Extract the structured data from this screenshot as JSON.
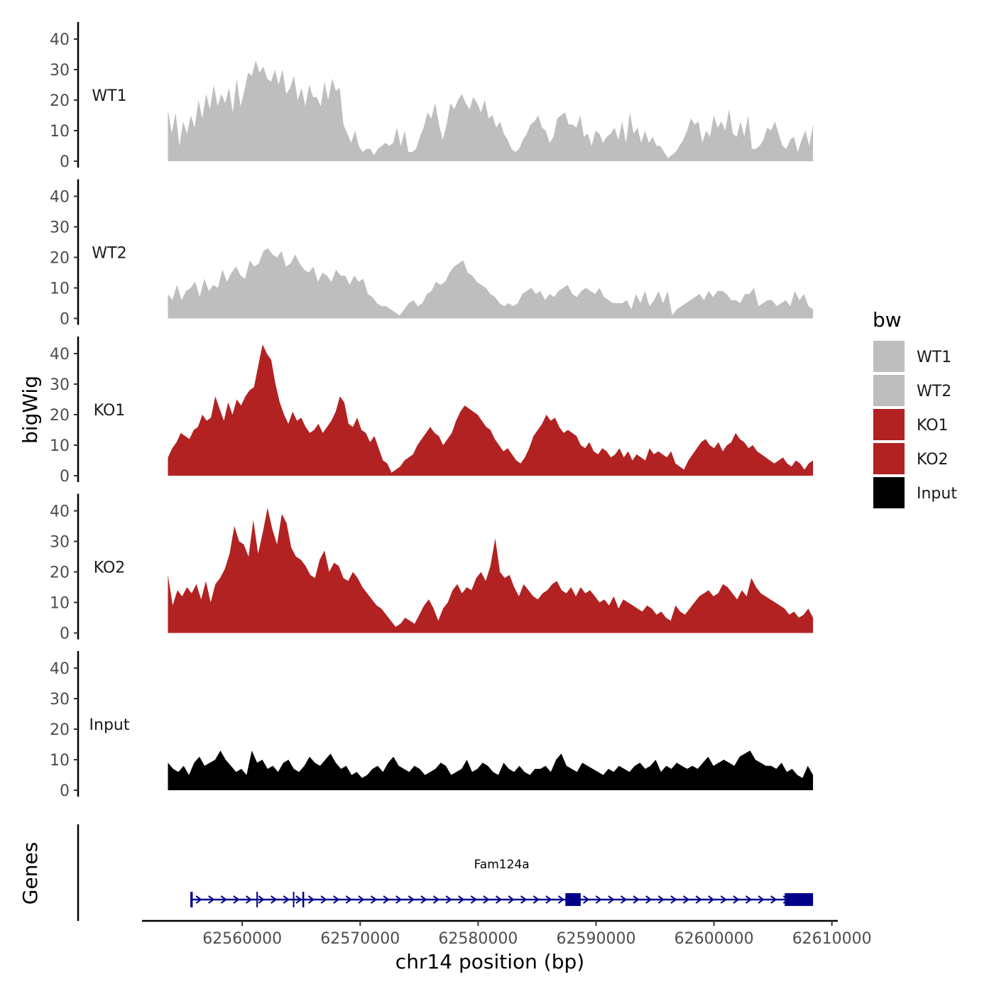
{
  "chart_data": {
    "type": "area",
    "subtype": "genome-browser-tracks",
    "xlabel": "chr14 position (bp)",
    "ylabel": "bigWig",
    "genes_label": "Genes",
    "x_range": [
      62553700,
      62608400
    ],
    "xlim": [
      62551500,
      62610500
    ],
    "ylim": [
      0,
      45
    ],
    "x_ticks": [
      62560000,
      62570000,
      62580000,
      62590000,
      62600000,
      62610000
    ],
    "x_tick_labels": [
      "62560000",
      "62570000",
      "62580000",
      "62590000",
      "62600000",
      "62610000"
    ],
    "y_ticks": [
      0,
      10,
      20,
      30,
      40
    ],
    "y_tick_labels": [
      "0",
      "10",
      "20",
      "30",
      "40"
    ],
    "legend": {
      "title": "bw",
      "position": "right",
      "items": [
        {
          "label": "WT1",
          "color": "#BEBEBE"
        },
        {
          "label": "WT2",
          "color": "#BEBEBE"
        },
        {
          "label": "KO1",
          "color": "#B22222"
        },
        {
          "label": "KO2",
          "color": "#B22222"
        },
        {
          "label": "Input",
          "color": "#000000"
        }
      ]
    },
    "series": [
      {
        "name": "WT1",
        "color": "#BEBEBE",
        "x_start": 62553700,
        "x_end": 62608400,
        "values": [
          17,
          9,
          16,
          5,
          13,
          9,
          15,
          11,
          20,
          14,
          22,
          17,
          25,
          18,
          22,
          19,
          24,
          16,
          27,
          18,
          23,
          29,
          28,
          33,
          29,
          31,
          27,
          26,
          30,
          25,
          30,
          22,
          24,
          28,
          20,
          24,
          18,
          25,
          21,
          21,
          18,
          26,
          20,
          27,
          23,
          24,
          12,
          9,
          6,
          10,
          5,
          3,
          4,
          4,
          2,
          4,
          5,
          6,
          5,
          6,
          11,
          5,
          10,
          3,
          3,
          4,
          8,
          11,
          16,
          14,
          19,
          12,
          7,
          12,
          19,
          17,
          20,
          22,
          19,
          17,
          21,
          19,
          16,
          20,
          14,
          15,
          11,
          13,
          9,
          7,
          4,
          3,
          4,
          7,
          9,
          12,
          13,
          15,
          11,
          10,
          6,
          8,
          14,
          15,
          16,
          12,
          12,
          11,
          15,
          8,
          9,
          5,
          10,
          9,
          6,
          8,
          9,
          11,
          7,
          13,
          6,
          16,
          9,
          11,
          6,
          10,
          6,
          8,
          5,
          5,
          3,
          1,
          2,
          3,
          5,
          7,
          10,
          14,
          12,
          13,
          6,
          10,
          8,
          15,
          11,
          13,
          10,
          17,
          9,
          8,
          13,
          8,
          15,
          4,
          4,
          5,
          7,
          11,
          10,
          13,
          9,
          5,
          4,
          7,
          8,
          3,
          7,
          10,
          5,
          12
        ]
      },
      {
        "name": "WT2",
        "color": "#BEBEBE",
        "x_start": 62553700,
        "x_end": 62608400,
        "values": [
          8,
          6,
          11,
          6,
          9,
          10,
          12,
          7,
          13,
          9,
          11,
          10,
          16,
          12,
          15,
          17,
          14,
          13,
          19,
          17,
          18,
          22,
          23,
          21,
          20,
          22,
          17,
          18,
          21,
          18,
          16,
          15,
          17,
          12,
          15,
          14,
          12,
          16,
          14,
          14,
          11,
          14,
          12,
          13,
          8,
          7,
          5,
          4,
          4,
          3,
          2,
          1,
          3,
          5,
          6,
          4,
          5,
          8,
          9,
          12,
          11,
          12,
          15,
          17,
          18,
          19,
          15,
          14,
          12,
          11,
          10,
          8,
          7,
          5,
          4,
          5,
          4,
          5,
          8,
          9,
          10,
          8,
          9,
          6,
          8,
          7,
          9,
          10,
          11,
          8,
          7,
          9,
          10,
          9,
          8,
          10,
          7,
          6,
          5,
          5,
          5,
          6,
          3,
          8,
          5,
          9,
          4,
          6,
          9,
          5,
          9,
          1,
          3,
          4,
          5,
          6,
          7,
          8,
          6,
          9,
          7,
          9,
          9,
          8,
          6,
          6,
          5,
          8,
          8,
          10,
          4,
          5,
          6,
          6,
          4,
          5,
          6,
          4,
          9,
          6,
          8,
          4,
          3
        ]
      },
      {
        "name": "KO1",
        "color": "#B22222",
        "x_start": 62553700,
        "x_end": 62608400,
        "values": [
          6,
          9,
          11,
          14,
          13,
          12,
          15,
          16,
          20,
          18,
          19,
          26,
          22,
          18,
          24,
          20,
          25,
          23,
          26,
          28,
          29,
          36,
          43,
          40,
          38,
          30,
          24,
          20,
          17,
          21,
          18,
          19,
          16,
          14,
          15,
          17,
          14,
          16,
          18,
          21,
          26,
          24,
          17,
          16,
          19,
          15,
          14,
          11,
          13,
          9,
          5,
          4,
          1,
          2,
          3,
          5,
          6,
          7,
          10,
          12,
          14,
          16,
          14,
          13,
          10,
          12,
          14,
          18,
          21,
          23,
          22,
          21,
          20,
          18,
          16,
          15,
          12,
          10,
          8,
          9,
          7,
          5,
          4,
          6,
          9,
          13,
          15,
          17,
          20,
          18,
          19,
          16,
          14,
          15,
          14,
          13,
          10,
          9,
          11,
          8,
          7,
          9,
          8,
          6,
          7,
          9,
          6,
          8,
          5,
          7,
          6,
          5,
          9,
          7,
          8,
          7,
          6,
          8,
          4,
          3,
          2,
          5,
          7,
          9,
          11,
          12,
          10,
          9,
          11,
          8,
          10,
          11,
          14,
          12,
          11,
          9,
          10,
          8,
          7,
          6,
          5,
          4,
          5,
          6,
          4,
          3,
          5,
          4,
          2,
          4,
          5
        ]
      },
      {
        "name": "KO2",
        "color": "#B22222",
        "x_start": 62553700,
        "x_end": 62608400,
        "values": [
          19,
          9,
          14,
          12,
          15,
          13,
          16,
          11,
          17,
          10,
          16,
          18,
          21,
          26,
          35,
          30,
          29,
          25,
          37,
          26,
          33,
          41,
          34,
          29,
          39,
          36,
          28,
          25,
          24,
          22,
          19,
          18,
          24,
          27,
          20,
          23,
          22,
          18,
          17,
          20,
          18,
          15,
          13,
          11,
          9,
          8,
          6,
          4,
          2,
          3,
          5,
          4,
          3,
          6,
          9,
          11,
          8,
          4,
          8,
          10,
          14,
          16,
          13,
          15,
          14,
          18,
          20,
          17,
          22,
          31,
          20,
          18,
          19,
          15,
          12,
          16,
          14,
          12,
          11,
          13,
          14,
          16,
          17,
          14,
          13,
          15,
          12,
          15,
          13,
          14,
          12,
          10,
          11,
          9,
          12,
          8,
          11,
          10,
          9,
          8,
          7,
          9,
          8,
          6,
          7,
          5,
          4,
          9,
          7,
          6,
          8,
          10,
          12,
          13,
          14,
          12,
          13,
          16,
          15,
          13,
          11,
          14,
          12,
          18,
          15,
          13,
          12,
          11,
          10,
          9,
          8,
          6,
          7,
          5,
          6,
          8,
          5
        ]
      },
      {
        "name": "Input",
        "color": "#000000",
        "x_start": 62553700,
        "x_end": 62608400,
        "values": [
          9,
          7,
          6,
          8,
          5,
          9,
          11,
          8,
          9,
          10,
          13,
          10,
          8,
          6,
          7,
          5,
          13,
          9,
          10,
          7,
          8,
          6,
          9,
          10,
          7,
          6,
          8,
          11,
          9,
          8,
          10,
          12,
          9,
          7,
          8,
          5,
          6,
          4,
          5,
          7,
          8,
          6,
          9,
          11,
          8,
          7,
          6,
          8,
          7,
          5,
          6,
          7,
          9,
          8,
          5,
          6,
          7,
          10,
          6,
          7,
          9,
          8,
          6,
          5,
          9,
          7,
          6,
          8,
          6,
          5,
          7,
          7,
          8,
          6,
          10,
          12,
          8,
          7,
          6,
          9,
          8,
          7,
          6,
          5,
          7,
          6,
          8,
          7,
          6,
          8,
          9,
          7,
          8,
          10,
          6,
          8,
          7,
          9,
          8,
          7,
          8,
          7,
          9,
          11,
          8,
          9,
          10,
          9,
          8,
          11,
          12,
          13,
          10,
          9,
          8,
          8,
          7,
          9,
          6,
          7,
          5,
          4,
          8,
          5
        ]
      }
    ],
    "gene": {
      "name": "Fam124a",
      "strand": "+",
      "start": 62555600,
      "end": 62608400,
      "color": "#00008B",
      "exons": [
        [
          62555600,
          62555800
        ],
        [
          62561200,
          62561300
        ],
        [
          62564300,
          62564400
        ],
        [
          62565100,
          62565250
        ],
        [
          62587400,
          62588700
        ],
        [
          62606000,
          62608400
        ]
      ]
    }
  }
}
